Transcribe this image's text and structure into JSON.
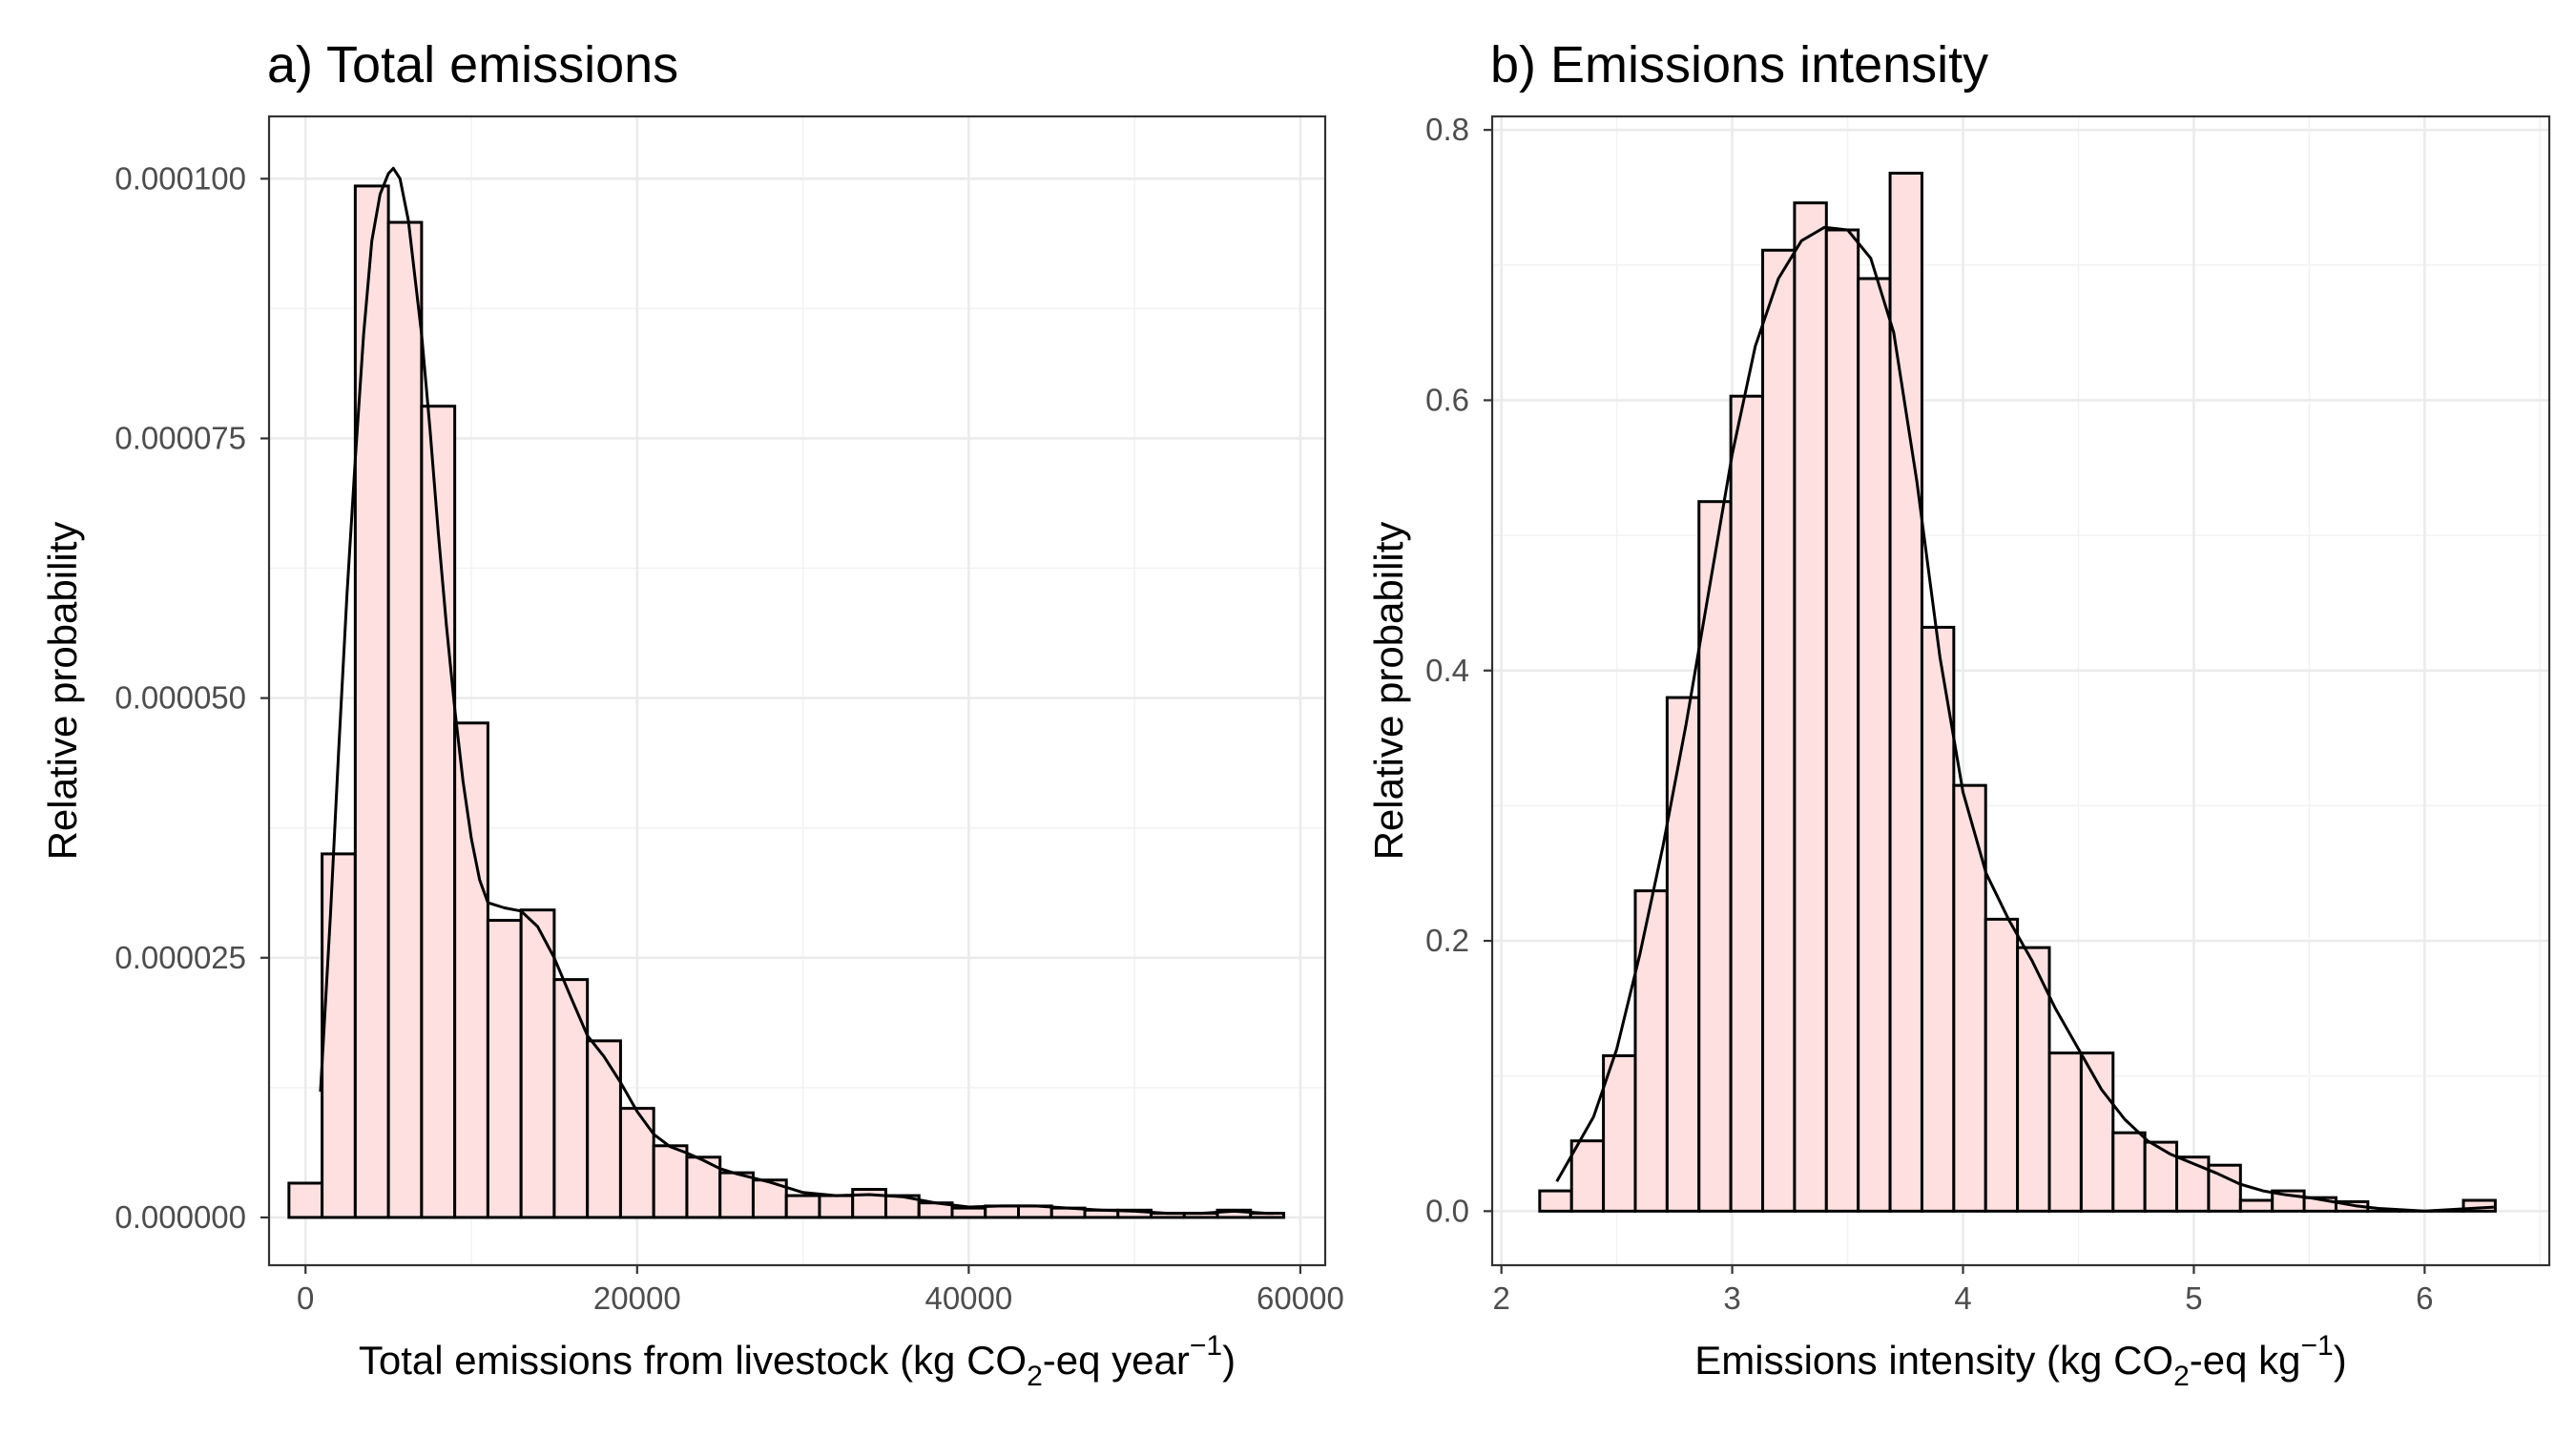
{
  "chart_data": [
    {
      "type": "histogram",
      "title": "a) Total emissions",
      "xlabel": {
        "pre": "Total emissions from livestock (kg CO",
        "sub": "2",
        "mid": "-eq year",
        "sup": "−1",
        "post": ")"
      },
      "ylabel": "Relative probability",
      "xlim": [
        -2200,
        61500
      ],
      "ylim": [
        -4.6e-06,
        0.000106
      ],
      "x_ticks": [
        0,
        20000,
        40000,
        60000
      ],
      "x_tick_labels": [
        "0",
        "20000",
        "40000",
        "60000"
      ],
      "y_ticks": [
        0,
        2.5e-05,
        5e-05,
        7.5e-05,
        0.0001
      ],
      "y_tick_labels": [
        "0.000000",
        "0.000025",
        "0.000050",
        "0.000075",
        "0.000100"
      ],
      "grid": true,
      "bar_fill": "#ffe0e0",
      "bar_stroke": "#000000",
      "density_color": "#000000",
      "bins": [
        {
          "x0": -1000,
          "x1": 1000,
          "y": 3.3e-06
        },
        {
          "x0": 1000,
          "x1": 3000,
          "y": 3.5e-05
        },
        {
          "x0": 3000,
          "x1": 5000,
          "y": 9.93e-05
        },
        {
          "x0": 5000,
          "x1": 7000,
          "y": 9.58e-05
        },
        {
          "x0": 7000,
          "x1": 9000,
          "y": 7.81e-05
        },
        {
          "x0": 9000,
          "x1": 11000,
          "y": 4.76e-05
        },
        {
          "x0": 11000,
          "x1": 13000,
          "y": 2.86e-05
        },
        {
          "x0": 13000,
          "x1": 15000,
          "y": 2.96e-05
        },
        {
          "x0": 15000,
          "x1": 17000,
          "y": 2.29e-05
        },
        {
          "x0": 17000,
          "x1": 19000,
          "y": 1.7e-05
        },
        {
          "x0": 19000,
          "x1": 21000,
          "y": 1.05e-05
        },
        {
          "x0": 21000,
          "x1": 23000,
          "y": 6.9e-06
        },
        {
          "x0": 23000,
          "x1": 25000,
          "y": 5.8e-06
        },
        {
          "x0": 25000,
          "x1": 27000,
          "y": 4.3e-06
        },
        {
          "x0": 27000,
          "x1": 29000,
          "y": 3.6e-06
        },
        {
          "x0": 29000,
          "x1": 31000,
          "y": 2.1e-06
        },
        {
          "x0": 31000,
          "x1": 33000,
          "y": 2.1e-06
        },
        {
          "x0": 33000,
          "x1": 35000,
          "y": 2.7e-06
        },
        {
          "x0": 35000,
          "x1": 37000,
          "y": 2.1e-06
        },
        {
          "x0": 37000,
          "x1": 39000,
          "y": 1.4e-06
        },
        {
          "x0": 39000,
          "x1": 41000,
          "y": 9e-07
        },
        {
          "x0": 41000,
          "x1": 43000,
          "y": 1.1e-06
        },
        {
          "x0": 43000,
          "x1": 45000,
          "y": 1.1e-06
        },
        {
          "x0": 45000,
          "x1": 47000,
          "y": 9e-07
        },
        {
          "x0": 47000,
          "x1": 49000,
          "y": 7e-07
        },
        {
          "x0": 49000,
          "x1": 51000,
          "y": 7e-07
        },
        {
          "x0": 51000,
          "x1": 53000,
          "y": 4e-07
        },
        {
          "x0": 53000,
          "x1": 55000,
          "y": 4e-07
        },
        {
          "x0": 55000,
          "x1": 57000,
          "y": 7e-07
        },
        {
          "x0": 57000,
          "x1": 59000,
          "y": 4e-07
        }
      ],
      "density": [
        [
          900,
          1.21e-05
        ],
        [
          1500,
          2.9e-05
        ],
        [
          2000,
          4.5e-05
        ],
        [
          2500,
          6e-05
        ],
        [
          3000,
          7.3e-05
        ],
        [
          3500,
          8.5e-05
        ],
        [
          4000,
          9.4e-05
        ],
        [
          4500,
          9.85e-05
        ],
        [
          5000,
          0.0001005
        ],
        [
          5300,
          0.000101
        ],
        [
          5700,
          0.0001
        ],
        [
          6200,
          9.6e-05
        ],
        [
          7000,
          8.5e-05
        ],
        [
          7500,
          7.6e-05
        ],
        [
          8000,
          6.6e-05
        ],
        [
          8500,
          5.7e-05
        ],
        [
          9000,
          4.9e-05
        ],
        [
          9500,
          4.2e-05
        ],
        [
          10000,
          3.65e-05
        ],
        [
          10500,
          3.25e-05
        ],
        [
          11000,
          3.03e-05
        ],
        [
          12000,
          2.98e-05
        ],
        [
          13000,
          2.95e-05
        ],
        [
          14000,
          2.8e-05
        ],
        [
          15000,
          2.5e-05
        ],
        [
          16000,
          2.12e-05
        ],
        [
          17000,
          1.75e-05
        ],
        [
          18000,
          1.55e-05
        ],
        [
          19000,
          1.3e-05
        ],
        [
          20000,
          1.02e-05
        ],
        [
          21000,
          8e-06
        ],
        [
          22000,
          6.8e-06
        ],
        [
          23000,
          6.2e-06
        ],
        [
          24000,
          5.5e-06
        ],
        [
          25000,
          4.7e-06
        ],
        [
          26000,
          4.2e-06
        ],
        [
          28000,
          3.4e-06
        ],
        [
          30000,
          2.4e-06
        ],
        [
          32000,
          2.1e-06
        ],
        [
          34000,
          2.2e-06
        ],
        [
          36000,
          2e-06
        ],
        [
          38000,
          1.4e-06
        ],
        [
          40000,
          1e-06
        ],
        [
          42000,
          1.1e-06
        ],
        [
          44000,
          1.1e-06
        ],
        [
          46000,
          9e-07
        ],
        [
          48000,
          7e-07
        ],
        [
          50000,
          6e-07
        ],
        [
          52000,
          4e-07
        ],
        [
          54000,
          4e-07
        ],
        [
          56000,
          6e-07
        ],
        [
          58000,
          4e-07
        ],
        [
          58400,
          4e-07
        ]
      ]
    },
    {
      "type": "histogram",
      "title": "b) Emissions intensity",
      "xlabel": {
        "pre": "Emissions intensity (kg CO",
        "sub": "2",
        "mid": "-eq kg",
        "sup": "−1",
        "post": ")"
      },
      "ylabel": "Relative probability",
      "xlim": [
        1.96,
        6.54
      ],
      "ylim": [
        -0.04,
        0.81
      ],
      "x_ticks": [
        2,
        3,
        4,
        5,
        6
      ],
      "x_tick_labels": [
        "2",
        "3",
        "4",
        "5",
        "6"
      ],
      "y_ticks": [
        0,
        0.2,
        0.4,
        0.6,
        0.8
      ],
      "y_tick_labels": [
        "0.0",
        "0.2",
        "0.4",
        "0.6",
        "0.8"
      ],
      "grid": true,
      "bar_fill": "#ffe0e0",
      "bar_stroke": "#000000",
      "density_color": "#000000",
      "bins": [
        {
          "x0": 2.166,
          "x1": 2.304,
          "y": 0.015
        },
        {
          "x0": 2.304,
          "x1": 2.442,
          "y": 0.052
        },
        {
          "x0": 2.442,
          "x1": 2.58,
          "y": 0.115
        },
        {
          "x0": 2.58,
          "x1": 2.718,
          "y": 0.237
        },
        {
          "x0": 2.718,
          "x1": 2.856,
          "y": 0.38
        },
        {
          "x0": 2.856,
          "x1": 2.994,
          "y": 0.525
        },
        {
          "x0": 2.994,
          "x1": 3.132,
          "y": 0.603
        },
        {
          "x0": 3.132,
          "x1": 3.27,
          "y": 0.711
        },
        {
          "x0": 3.27,
          "x1": 3.408,
          "y": 0.746
        },
        {
          "x0": 3.408,
          "x1": 3.546,
          "y": 0.726
        },
        {
          "x0": 3.546,
          "x1": 3.684,
          "y": 0.69
        },
        {
          "x0": 3.684,
          "x1": 3.822,
          "y": 0.768
        },
        {
          "x0": 3.822,
          "x1": 3.96,
          "y": 0.432
        },
        {
          "x0": 3.96,
          "x1": 4.098,
          "y": 0.315
        },
        {
          "x0": 4.098,
          "x1": 4.236,
          "y": 0.216
        },
        {
          "x0": 4.236,
          "x1": 4.374,
          "y": 0.195
        },
        {
          "x0": 4.374,
          "x1": 4.512,
          "y": 0.117
        },
        {
          "x0": 4.512,
          "x1": 4.65,
          "y": 0.117
        },
        {
          "x0": 4.65,
          "x1": 4.788,
          "y": 0.058
        },
        {
          "x0": 4.788,
          "x1": 4.926,
          "y": 0.051
        },
        {
          "x0": 4.926,
          "x1": 5.064,
          "y": 0.04
        },
        {
          "x0": 5.064,
          "x1": 5.202,
          "y": 0.034
        },
        {
          "x0": 5.202,
          "x1": 5.34,
          "y": 0.008
        },
        {
          "x0": 5.34,
          "x1": 5.478,
          "y": 0.015
        },
        {
          "x0": 5.478,
          "x1": 5.616,
          "y": 0.01
        },
        {
          "x0": 5.616,
          "x1": 5.754,
          "y": 0.007
        },
        {
          "x0": 5.754,
          "x1": 5.892,
          "y": 0.0
        },
        {
          "x0": 5.892,
          "x1": 6.03,
          "y": 0.0
        },
        {
          "x0": 6.03,
          "x1": 6.168,
          "y": 0.0
        },
        {
          "x0": 6.168,
          "x1": 6.306,
          "y": 0.008
        }
      ],
      "density": [
        [
          2.24,
          0.022
        ],
        [
          2.3,
          0.04
        ],
        [
          2.4,
          0.07
        ],
        [
          2.5,
          0.12
        ],
        [
          2.6,
          0.19
        ],
        [
          2.7,
          0.27
        ],
        [
          2.8,
          0.36
        ],
        [
          2.9,
          0.46
        ],
        [
          3.0,
          0.56
        ],
        [
          3.1,
          0.64
        ],
        [
          3.2,
          0.69
        ],
        [
          3.3,
          0.718
        ],
        [
          3.4,
          0.728
        ],
        [
          3.5,
          0.726
        ],
        [
          3.6,
          0.705
        ],
        [
          3.7,
          0.65
        ],
        [
          3.8,
          0.54
        ],
        [
          3.9,
          0.41
        ],
        [
          4.0,
          0.31
        ],
        [
          4.1,
          0.25
        ],
        [
          4.2,
          0.215
        ],
        [
          4.3,
          0.185
        ],
        [
          4.4,
          0.15
        ],
        [
          4.5,
          0.12
        ],
        [
          4.6,
          0.09
        ],
        [
          4.7,
          0.068
        ],
        [
          4.8,
          0.052
        ],
        [
          4.9,
          0.042
        ],
        [
          5.0,
          0.035
        ],
        [
          5.1,
          0.028
        ],
        [
          5.2,
          0.02
        ],
        [
          5.3,
          0.015
        ],
        [
          5.4,
          0.012
        ],
        [
          5.5,
          0.01
        ],
        [
          5.6,
          0.007
        ],
        [
          5.7,
          0.004
        ],
        [
          5.8,
          0.002
        ],
        [
          5.9,
          0.001
        ],
        [
          6.0,
          0.0
        ],
        [
          6.1,
          0.001
        ],
        [
          6.2,
          0.002
        ],
        [
          6.3,
          0.003
        ]
      ]
    }
  ]
}
